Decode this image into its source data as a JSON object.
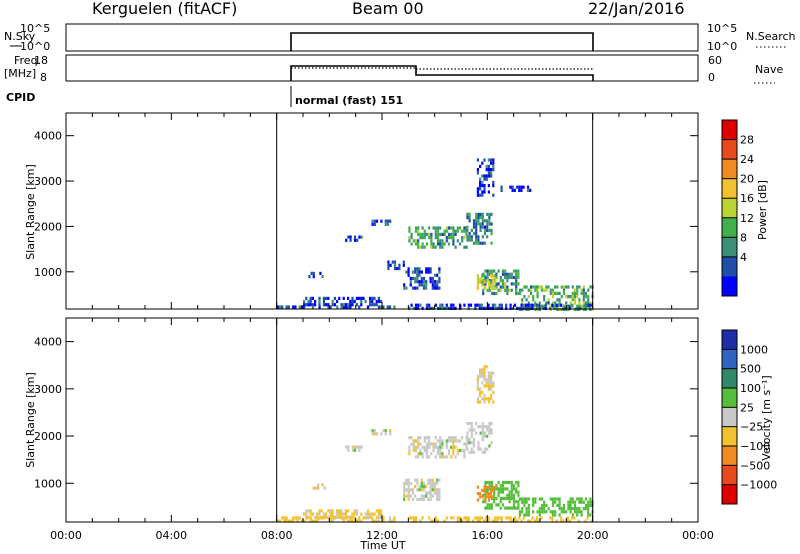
{
  "header": {
    "station": "Kerguelen (fitACF)",
    "beam": "Beam 00",
    "date": "22/Jan/2016"
  },
  "nsky": {
    "left_label": "N.Sky",
    "left_ticks": [
      "10^5",
      "10^0"
    ],
    "right_ticks": [
      "10^5",
      "10^0"
    ],
    "right_label": "N.Search"
  },
  "freq": {
    "left_label_1": "Freq.",
    "left_label_2": "[MHz]",
    "left_ticks": [
      "18",
      "8"
    ],
    "right_ticks": [
      "60",
      "0"
    ],
    "right_label": "Nave"
  },
  "cpid": {
    "label": "CPID",
    "program": "normal (fast) 151"
  },
  "colors": {
    "power_scale": [
      "#0000ff",
      "#1f4fa8",
      "#3d8f7a",
      "#3fb04a",
      "#b8d434",
      "#f2c230",
      "#f08a23",
      "#e84a1a",
      "#e00000"
    ],
    "velocity_scale": [
      "#1c2fa8",
      "#2e64c2",
      "#2f8a6a",
      "#55bf3c",
      "#c8c8c8",
      "#f2c230",
      "#f08a23",
      "#e84a1a",
      "#e00000"
    ]
  },
  "chart_data": [
    {
      "type": "heatmap",
      "name": "power",
      "ylabel": "Slant Range [km]",
      "xlim": [
        0,
        24
      ],
      "ylim": [
        180,
        4500
      ],
      "yticks": [
        1000,
        2000,
        3000,
        4000
      ],
      "colorbar_label": "Power [dB]",
      "colorbar_ticks": [
        "28",
        "24",
        "20",
        "16",
        "12",
        "8",
        "4"
      ],
      "observation_window_ut": [
        8,
        20
      ],
      "echo_regions": [
        {
          "t0": 8.0,
          "t1": 12.5,
          "r0": 190,
          "r1": 260,
          "level": 4
        },
        {
          "t0": 9.0,
          "t1": 12.0,
          "r0": 300,
          "r1": 450,
          "level": 3
        },
        {
          "t0": 9.2,
          "t1": 9.8,
          "r0": 900,
          "r1": 1000,
          "level": 3
        },
        {
          "t0": 10.6,
          "t1": 11.2,
          "r0": 1700,
          "r1": 1800,
          "level": 3
        },
        {
          "t0": 11.6,
          "t1": 12.3,
          "r0": 2050,
          "r1": 2150,
          "level": 3
        },
        {
          "t0": 12.2,
          "t1": 12.8,
          "r0": 1050,
          "r1": 1250,
          "level": 4
        },
        {
          "t0": 12.8,
          "t1": 14.2,
          "r0": 650,
          "r1": 1100,
          "level": 5
        },
        {
          "t0": 13.0,
          "t1": 15.2,
          "r0": 1550,
          "r1": 2000,
          "level": 9
        },
        {
          "t0": 15.2,
          "t1": 16.2,
          "r0": 1650,
          "r1": 2300,
          "level": 7
        },
        {
          "t0": 15.6,
          "t1": 16.2,
          "r0": 2700,
          "r1": 3500,
          "level": 3
        },
        {
          "t0": 15.8,
          "t1": 17.2,
          "r0": 500,
          "r1": 1050,
          "level": 9
        },
        {
          "t0": 15.6,
          "t1": 16.3,
          "r0": 650,
          "r1": 950,
          "level": 14
        },
        {
          "t0": 16.5,
          "t1": 17.6,
          "r0": 2800,
          "r1": 2900,
          "level": 3
        },
        {
          "t0": 17.2,
          "t1": 20.0,
          "r0": 150,
          "r1": 700,
          "level": 10
        },
        {
          "t0": 13.0,
          "t1": 20.0,
          "r0": 150,
          "r1": 300,
          "level": 4
        }
      ]
    },
    {
      "type": "heatmap",
      "name": "velocity",
      "xlabel": "Time UT",
      "ylabel": "Slant Range [km]",
      "xlim": [
        0,
        24
      ],
      "ylim": [
        180,
        4500
      ],
      "xticks": [
        "00:00",
        "04:00",
        "08:00",
        "12:00",
        "16:00",
        "20:00",
        "00:00"
      ],
      "yticks": [
        1000,
        2000,
        3000,
        4000
      ],
      "colorbar_label": "Velocity [m s⁻¹]",
      "colorbar_ticks": [
        "1000",
        "500",
        "100",
        "25",
        "−25",
        "−100",
        "−500",
        "−1000"
      ],
      "observation_window_ut": [
        8,
        20
      ],
      "echo_regions": [
        {
          "t0": 8.0,
          "t1": 12.5,
          "r0": 190,
          "r1": 300,
          "vel": -50
        },
        {
          "t0": 9.0,
          "t1": 12.0,
          "r0": 300,
          "r1": 450,
          "vel": -40
        },
        {
          "t0": 9.2,
          "t1": 9.8,
          "r0": 900,
          "r1": 1000,
          "vel": -30
        },
        {
          "t0": 10.6,
          "t1": 11.2,
          "r0": 1700,
          "r1": 1800,
          "vel": 0
        },
        {
          "t0": 11.6,
          "t1": 12.3,
          "r0": 2050,
          "r1": 2150,
          "vel": 0
        },
        {
          "t0": 12.8,
          "t1": 14.2,
          "r0": 650,
          "r1": 1100,
          "vel": 0
        },
        {
          "t0": 13.0,
          "t1": 15.2,
          "r0": 1550,
          "r1": 2000,
          "vel": 0
        },
        {
          "t0": 15.2,
          "t1": 16.2,
          "r0": 1650,
          "r1": 2300,
          "vel": 0
        },
        {
          "t0": 15.6,
          "t1": 16.2,
          "r0": 2700,
          "r1": 3500,
          "vel": -30
        },
        {
          "t0": 15.8,
          "t1": 17.2,
          "r0": 500,
          "r1": 1050,
          "vel": 60
        },
        {
          "t0": 15.6,
          "t1": 16.3,
          "r0": 650,
          "r1": 950,
          "vel": -400
        },
        {
          "t0": 17.2,
          "t1": 20.0,
          "r0": 300,
          "r1": 700,
          "vel": 70
        },
        {
          "t0": 13.0,
          "t1": 20.0,
          "r0": 150,
          "r1": 300,
          "vel": -60
        }
      ]
    }
  ]
}
